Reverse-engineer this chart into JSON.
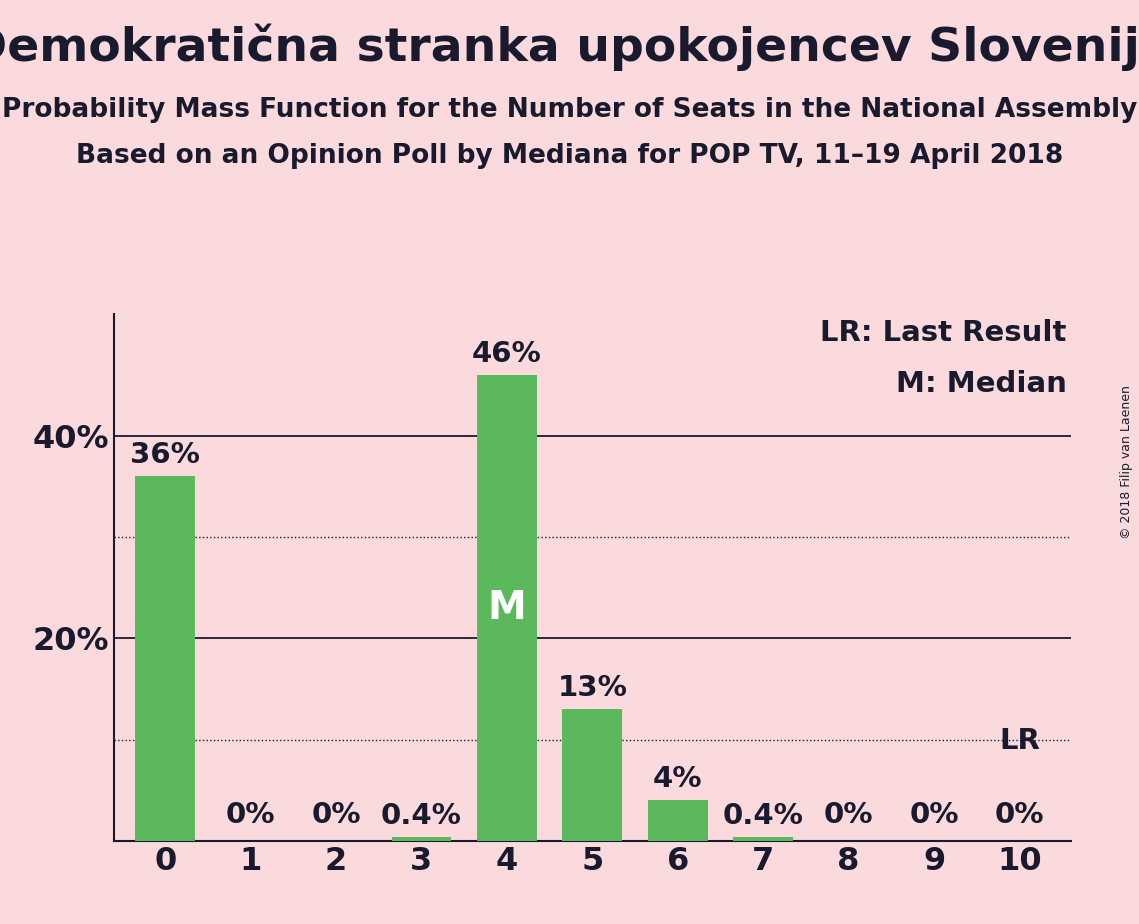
{
  "title": "Demokratična stranka upokojencev Slovenije",
  "subtitle1": "Probability Mass Function for the Number of Seats in the National Assembly",
  "subtitle2": "Based on an Opinion Poll by Mediana for POP TV, 11–19 April 2018",
  "copyright": "© 2018 Filip van Laenen",
  "categories": [
    0,
    1,
    2,
    3,
    4,
    5,
    6,
    7,
    8,
    9,
    10
  ],
  "values": [
    36,
    0,
    0,
    0.4,
    46,
    13,
    4,
    0.4,
    0,
    0,
    0
  ],
  "labels": [
    "36%",
    "0%",
    "0%",
    "0.4%",
    "46%",
    "13%",
    "4%",
    "0.4%",
    "0%",
    "0%",
    "0%"
  ],
  "bar_color": "#5cb85c",
  "median_bar": 4,
  "lr_bar": 10,
  "lr_label": "LR",
  "lr_value_label": "0%",
  "legend_lr": "LR: Last Result",
  "legend_m": "M: Median",
  "median_label": "M",
  "median_label_color": "#ffffff",
  "text_color": "#1a1a2e",
  "background_color": "#fadadd",
  "solid_gridlines": [
    20,
    40
  ],
  "dotted_gridlines": [
    10,
    30
  ],
  "ylim": [
    0,
    52
  ],
  "title_fontsize": 34,
  "subtitle_fontsize": 19,
  "bar_label_fontsize": 21,
  "legend_fontsize": 21,
  "median_label_fontsize": 28,
  "ytick_fontsize": 23,
  "xtick_fontsize": 23
}
